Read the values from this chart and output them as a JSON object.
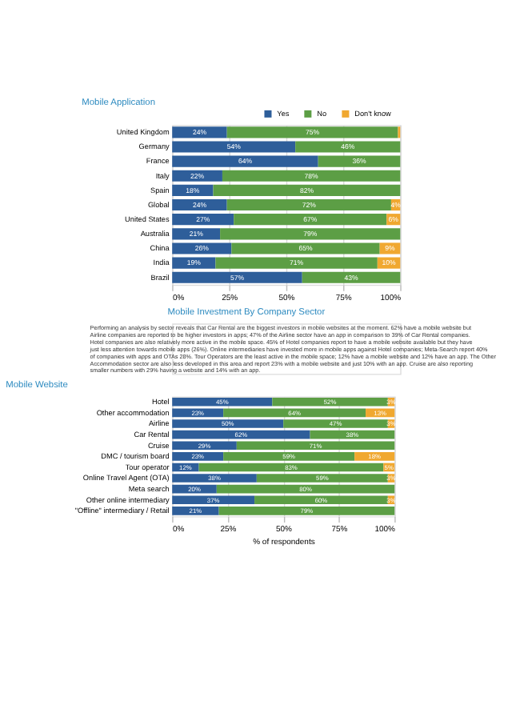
{
  "chart_data": [
    {
      "type": "bar",
      "orientation": "horizontal",
      "stacked": true,
      "title": "Mobile Application",
      "legend": "top right",
      "grid": "x",
      "categories": [
        "United Kingdom",
        "Germany",
        "France",
        "Italy",
        "Spain",
        "Global",
        "United States",
        "Australia",
        "China",
        "India",
        "Brazil"
      ],
      "xlim": [
        0,
        100
      ],
      "xticks": [
        {
          "value": 0,
          "label": "0%"
        },
        {
          "value": 25,
          "label": "25%"
        },
        {
          "value": 50,
          "label": "50%"
        },
        {
          "value": 75,
          "label": "75%"
        },
        {
          "value": 100,
          "label": "100%"
        }
      ],
      "series": [
        {
          "name": "Yes",
          "color": "#2e5e9a",
          "values": [
            24,
            54,
            64,
            22,
            18,
            24,
            27,
            21,
            26,
            19,
            57
          ],
          "value_labels": [
            "24%",
            "54%",
            "64%",
            "22%",
            "18%",
            "24%",
            "27%",
            "21%",
            "26%",
            "19%",
            "57%"
          ]
        },
        {
          "name": "No",
          "color": "#5c9e45",
          "values": [
            75,
            46,
            36,
            78,
            82,
            72,
            67,
            79,
            65,
            71,
            43
          ],
          "value_labels": [
            "75%",
            "46%",
            "36%",
            "78%",
            "82%",
            "72%",
            "67%",
            "79%",
            "65%",
            "71%",
            "43%"
          ]
        },
        {
          "name": "Don't know",
          "color": "#f0a830",
          "values": [
            1,
            0,
            0,
            0,
            0,
            4,
            6,
            0,
            9,
            10,
            0
          ],
          "value_labels": [
            null,
            null,
            null,
            null,
            null,
            "4%",
            "6%",
            null,
            "9%",
            "10%",
            null
          ]
        }
      ]
    },
    {
      "type": "other",
      "title": "Mobile Investment By Company Sector",
      "annotations": [
        "Performing an analysis by sector reveals that Car Rental are the biggest investors in mobile websites at the moment. 62% have a mobile website but Airline companies are reported to be higher investors in apps; 47% of the Airline sector have an app in comparison to 39% of Car Rental companies. Hotel companies are also relatively more active in the mobile space. 45% of Hotel companies report to have a mobile website available but they have just less attention towards mobile apps (26%). Online intermediaries have invested more in mobile apps against Hotel companies; Meta-Search report 40% of companies with apps and OTAs 28%. Tour Operators are the least active in the mobile space; 12% have a mobile website and 12% have an app. The Other Accommodation sector are also less developed in this area and report 23% with a mobile website and just 10% with an app. Cruise are also reporting smaller numbers with 29% having a website and 14% with an app."
      ]
    },
    {
      "type": "bar",
      "orientation": "horizontal",
      "stacked": true,
      "title": "Mobile Website",
      "xlabel": "% of respondents",
      "grid": "x",
      "categories": [
        "Hotel",
        "Other accommodation",
        "Airline",
        "Car Rental",
        "Cruise",
        "DMC / tourism board",
        "Tour operator",
        "Online Travel Agent (OTA)",
        "Meta search",
        "Other online intermediary",
        "\"Offline\" intermediary / Retail"
      ],
      "xlim": [
        0,
        100
      ],
      "xticks": [
        {
          "value": 0,
          "label": "0%"
        },
        {
          "value": 25,
          "label": "25%"
        },
        {
          "value": 50,
          "label": "50%"
        },
        {
          "value": 75,
          "label": "75%"
        },
        {
          "value": 100,
          "label": "100%"
        }
      ],
      "series": [
        {
          "name": "Yes",
          "color": "#2e5e9a",
          "values": [
            45,
            23,
            50,
            62,
            29,
            23,
            12,
            38,
            20,
            37,
            21
          ],
          "value_labels": [
            "45%",
            "23%",
            "50%",
            "62%",
            "29%",
            "23%",
            "12%",
            "38%",
            "20%",
            "37%",
            "21%"
          ]
        },
        {
          "name": "No",
          "color": "#5c9e45",
          "values": [
            52,
            64,
            47,
            38,
            71,
            59,
            83,
            59,
            80,
            60,
            79
          ],
          "value_labels": [
            "52%",
            "64%",
            "47%",
            "38%",
            "71%",
            "59%",
            "83%",
            "59%",
            "80%",
            "60%",
            "79%"
          ]
        },
        {
          "name": "Don't know",
          "color": "#f0a830",
          "values": [
            3,
            13,
            3,
            0,
            0,
            18,
            5,
            3,
            0,
            3,
            0
          ],
          "value_labels": [
            "3%",
            "13%",
            "3%",
            null,
            null,
            "18%",
            "5%",
            "3%",
            null,
            "3%",
            null
          ]
        }
      ]
    }
  ]
}
